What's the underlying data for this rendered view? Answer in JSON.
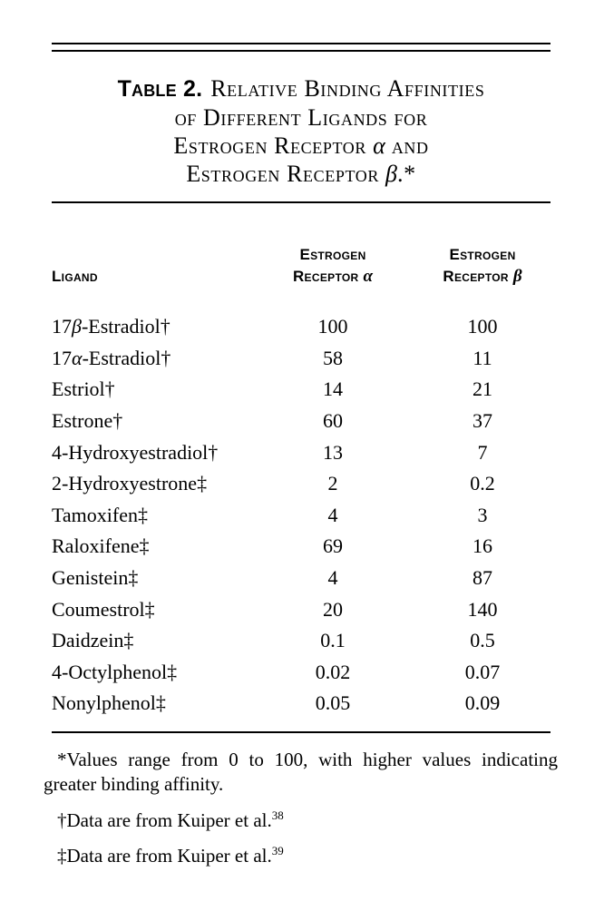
{
  "table": {
    "label": "Table 2.",
    "title_lines": [
      {
        "pre": "Relative Binding Affinities",
        "greek": "",
        "post": ""
      },
      {
        "pre": "of Different Ligands for",
        "greek": "",
        "post": ""
      },
      {
        "pre": "Estrogen Receptor ",
        "greek": "α",
        "post": " and"
      },
      {
        "pre": "Estrogen Receptor ",
        "greek": "β",
        "post": ".*"
      }
    ],
    "columns": {
      "ligand": "Ligand",
      "er_alpha": {
        "line1": "Estrogen",
        "line2_pre": "Receptor ",
        "line2_greek": "α"
      },
      "er_beta": {
        "line1": "Estrogen",
        "line2_pre": "Receptor ",
        "line2_greek": "β"
      }
    },
    "rows": [
      {
        "name_pre": "17",
        "name_greek": "β",
        "name_post": "-Estradiol†",
        "er_alpha": "100",
        "er_beta": "100"
      },
      {
        "name_pre": "17",
        "name_greek": "α",
        "name_post": "-Estradiol†",
        "er_alpha": "58",
        "er_beta": "11"
      },
      {
        "name_pre": "Estriol†",
        "name_greek": "",
        "name_post": "",
        "er_alpha": "14",
        "er_beta": "21"
      },
      {
        "name_pre": "Estrone†",
        "name_greek": "",
        "name_post": "",
        "er_alpha": "60",
        "er_beta": "37"
      },
      {
        "name_pre": "4-Hydroxyestradiol†",
        "name_greek": "",
        "name_post": "",
        "er_alpha": "13",
        "er_beta": "7"
      },
      {
        "name_pre": "2-Hydroxyestrone‡",
        "name_greek": "",
        "name_post": "",
        "er_alpha": "2",
        "er_beta": "0.2"
      },
      {
        "name_pre": "Tamoxifen‡",
        "name_greek": "",
        "name_post": "",
        "er_alpha": "4",
        "er_beta": "3"
      },
      {
        "name_pre": "Raloxifene‡",
        "name_greek": "",
        "name_post": "",
        "er_alpha": "69",
        "er_beta": "16"
      },
      {
        "name_pre": "Genistein‡",
        "name_greek": "",
        "name_post": "",
        "er_alpha": "4",
        "er_beta": "87"
      },
      {
        "name_pre": "Coumestrol‡",
        "name_greek": "",
        "name_post": "",
        "er_alpha": "20",
        "er_beta": "140"
      },
      {
        "name_pre": "Daidzein‡",
        "name_greek": "",
        "name_post": "",
        "er_alpha": "0.1",
        "er_beta": "0.5"
      },
      {
        "name_pre": "4-Octylphenol‡",
        "name_greek": "",
        "name_post": "",
        "er_alpha": "0.02",
        "er_beta": "0.07"
      },
      {
        "name_pre": "Nonylphenol‡",
        "name_greek": "",
        "name_post": "",
        "er_alpha": "0.05",
        "er_beta": "0.09"
      }
    ]
  },
  "footnotes": [
    {
      "text": "*Values range from 0 to 100, with higher values indicating greater binding affinity.",
      "ref": ""
    },
    {
      "text": "†Data are from Kuiper et al.",
      "ref": "38"
    },
    {
      "text": "‡Data are from Kuiper et al.",
      "ref": "39"
    }
  ]
}
